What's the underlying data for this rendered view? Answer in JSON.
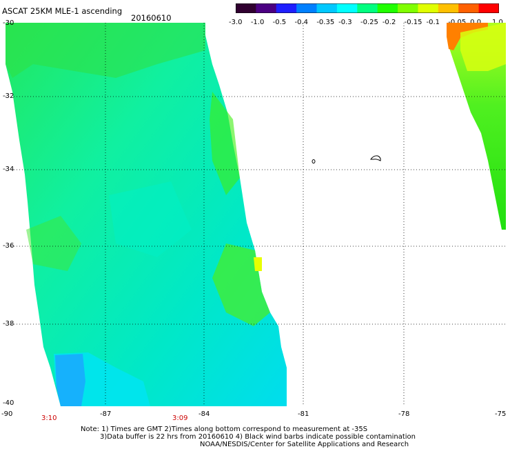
{
  "header": {
    "title": "ASCAT 25KM MLE-1 ascending",
    "date": "20160610"
  },
  "colorbar": {
    "labels": [
      "-3.0",
      "-1.0",
      "-0.5",
      "-0.4",
      "-0.35",
      "-0.3",
      "-0.25",
      "-0.2",
      "-0.15",
      "-0.1",
      "-0.05",
      "0.0",
      "1.0"
    ],
    "colors": [
      "#300030",
      "#4b0082",
      "#1f1fff",
      "#0080ff",
      "#00c8ff",
      "#00ffff",
      "#00ff80",
      "#20ff00",
      "#80ff00",
      "#e0ff00",
      "#ffc000",
      "#ff6000",
      "#ff0000"
    ]
  },
  "axes": {
    "y_ticks": [
      "-30",
      "-32",
      "-34",
      "-36",
      "-38",
      "-40"
    ],
    "x_ticks": [
      "-90",
      "-87",
      "-84",
      "-81",
      "-78",
      "-75"
    ]
  },
  "times": {
    "left": "3:10",
    "right": "3:09"
  },
  "notes": {
    "line1": "Note: 1) Times are GMT 2)Times along bottom correspond to measurement at -35S",
    "line2": "3)Data buffer is 22 hrs from 20160610 4) Black wind barbs indicate possible contamination",
    "line3": "NOAA/NESDIS/Center for Satellite Applications and Research"
  }
}
